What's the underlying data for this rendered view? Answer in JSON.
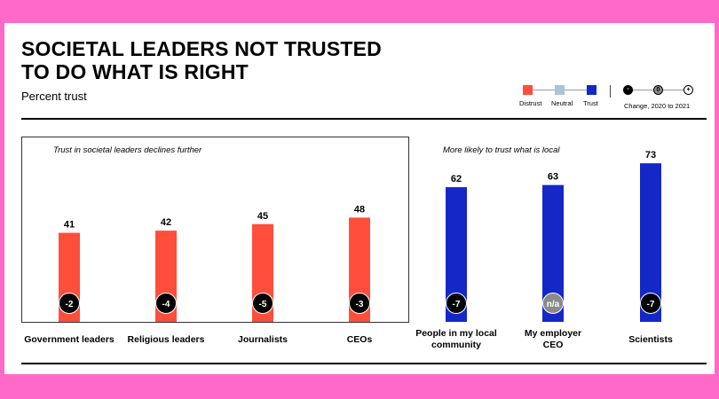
{
  "header": {
    "title_line1": "SOCIETAL LEADERS NOT TRUSTED",
    "title_line2": "TO DO WHAT IS RIGHT",
    "subtitle": "Percent trust"
  },
  "legend": {
    "distrust": "Distrust",
    "neutral": "Neutral",
    "trust": "Trust",
    "change_label": "Change, 2020 to 2021",
    "minus_symbol": "-",
    "zero_symbol": "0",
    "plus_symbol": "+"
  },
  "colors": {
    "distrust": "#ff4e3c",
    "neutral": "#a9c4d6",
    "trust": "#1428c8",
    "change_bubble": "#000000",
    "na_bubble": "#8a8a8a"
  },
  "chart_data": [
    {
      "type": "bar",
      "title": "Trust in societal leaders declines further",
      "categories": [
        "Government leaders",
        "Religious leaders",
        "Journalists",
        "CEOs"
      ],
      "values": [
        41,
        42,
        45,
        48
      ],
      "change": [
        "-2",
        "-4",
        "-5",
        "-3"
      ],
      "color": "#ff4e3c",
      "ylim": [
        0,
        100
      ]
    },
    {
      "type": "bar",
      "title": "More likely to trust what  is local",
      "categories": [
        "People in my local community",
        "My employer CEO",
        "Scientists"
      ],
      "values": [
        62,
        63,
        73
      ],
      "change": [
        "-7",
        "n/a",
        "-7"
      ],
      "color": "#1428c8",
      "ylim": [
        0,
        100
      ]
    }
  ]
}
